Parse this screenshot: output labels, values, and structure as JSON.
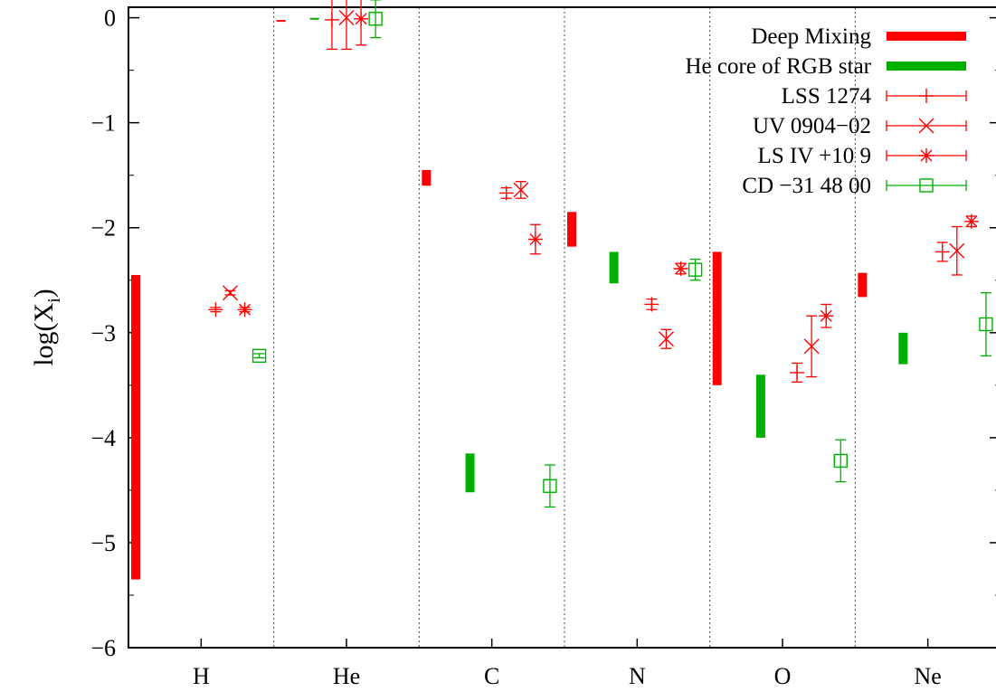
{
  "chart_data": {
    "type": "scatter",
    "title": "",
    "xlabel": "",
    "ylabel": "log(X",
    "ylabel_sub": "i",
    "ylabel_close": ")",
    "ylim": [
      -6,
      0.1
    ],
    "yticks": [
      0,
      -1,
      -2,
      -3,
      -4,
      -5,
      -6
    ],
    "ytick_labels": [
      "0",
      "−1",
      "−2",
      "−3",
      "−4",
      "−5",
      "−6"
    ],
    "categories": [
      "H",
      "He",
      "C",
      "N",
      "O",
      "Ne"
    ],
    "grid": "vertical dotted separators between element categories",
    "legend_position": "top-right",
    "colors": {
      "red": "#ff0000",
      "green": "#00b000"
    },
    "range_series": [
      {
        "name": "Deep Mixing",
        "color": "#ff0000",
        "offset": -0.45,
        "ranges": [
          {
            "category": "H",
            "low": -5.35,
            "high": -2.45
          },
          {
            "category": "He",
            "low": -0.04,
            "high": -0.02
          },
          {
            "category": "C",
            "low": -1.6,
            "high": -1.45
          },
          {
            "category": "N",
            "low": -2.18,
            "high": -1.85
          },
          {
            "category": "O",
            "low": -3.5,
            "high": -2.23
          },
          {
            "category": "Ne",
            "low": -2.66,
            "high": -2.43
          }
        ]
      },
      {
        "name": "He core of RGB star",
        "color": "#00b000",
        "offsets": {
          "H": null,
          "He": -0.22,
          "C": -0.15,
          "N": -0.16,
          "O": -0.15,
          "Ne": -0.17
        },
        "ranges": [
          {
            "category": "He",
            "low": -0.015,
            "high": -0.005
          },
          {
            "category": "C",
            "low": -4.52,
            "high": -4.15
          },
          {
            "category": "N",
            "low": -2.53,
            "high": -2.23
          },
          {
            "category": "O",
            "low": -4.0,
            "high": -3.4
          },
          {
            "category": "Ne",
            "low": -3.3,
            "high": -3.0
          }
        ]
      }
    ],
    "point_series": [
      {
        "name": "LSS 1274",
        "marker": "plus",
        "color": "#ff0000",
        "points": [
          {
            "category": "H",
            "offset": 0.1,
            "y": -2.78,
            "err": 0.02
          },
          {
            "category": "He",
            "offset": -0.1,
            "y": -0.02,
            "err": 0.28
          },
          {
            "category": "C",
            "offset": 0.1,
            "y": -1.67,
            "err": 0.05
          },
          {
            "category": "N",
            "offset": 0.1,
            "y": -2.73,
            "err": 0.05
          },
          {
            "category": "O",
            "offset": 0.1,
            "y": -3.38,
            "err": 0.09
          },
          {
            "category": "Ne",
            "offset": 0.1,
            "y": -2.23,
            "err": 0.09
          }
        ]
      },
      {
        "name": "UV 0904−02",
        "marker": "cross",
        "color": "#ff0000",
        "points": [
          {
            "category": "H",
            "offset": 0.2,
            "y": -2.62,
            "err": 0.02
          },
          {
            "category": "He",
            "offset": 0.0,
            "y": 0.0,
            "err": 0.3
          },
          {
            "category": "C",
            "offset": 0.2,
            "y": -1.64,
            "err": 0.08
          },
          {
            "category": "N",
            "offset": 0.2,
            "y": -3.06,
            "err": 0.09
          },
          {
            "category": "O",
            "offset": 0.2,
            "y": -3.13,
            "err": 0.29
          },
          {
            "category": "Ne",
            "offset": 0.2,
            "y": -2.22,
            "err": 0.23
          }
        ]
      },
      {
        "name": "LS IV +10 9",
        "marker": "star",
        "color": "#ff0000",
        "points": [
          {
            "category": "H",
            "offset": 0.3,
            "y": -2.78,
            "err": 0.02
          },
          {
            "category": "He",
            "offset": 0.1,
            "y": -0.01,
            "err": 0.25
          },
          {
            "category": "C",
            "offset": 0.3,
            "y": -2.11,
            "err": 0.14
          },
          {
            "category": "N",
            "offset": 0.3,
            "y": -2.39,
            "err": 0.05
          },
          {
            "category": "O",
            "offset": 0.3,
            "y": -2.84,
            "err": 0.11
          },
          {
            "category": "Ne",
            "offset": 0.3,
            "y": -1.94,
            "err": 0.05
          }
        ]
      },
      {
        "name": "CD −31 48 00",
        "marker": "square",
        "color": "#00b000",
        "points": [
          {
            "category": "H",
            "offset": 0.4,
            "y": -3.22,
            "err": 0.02
          },
          {
            "category": "He",
            "offset": 0.2,
            "y": -0.01,
            "err": 0.18
          },
          {
            "category": "C",
            "offset": 0.4,
            "y": -4.46,
            "err": 0.2
          },
          {
            "category": "N",
            "offset": 0.4,
            "y": -2.4,
            "err": 0.1
          },
          {
            "category": "O",
            "offset": 0.4,
            "y": -4.22,
            "err": 0.2
          },
          {
            "category": "Ne",
            "offset": 0.4,
            "y": -2.92,
            "err": 0.3
          }
        ]
      }
    ]
  }
}
